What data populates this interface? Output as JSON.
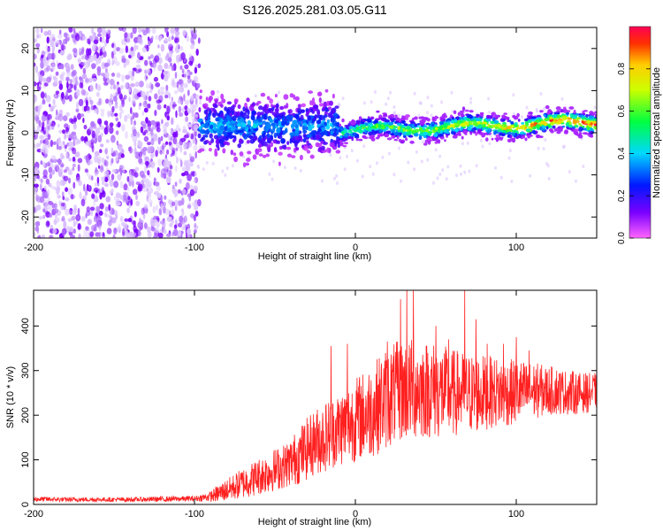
{
  "title": "S126.2025.281.03.05.G11",
  "chart_data": [
    {
      "type": "heatmap",
      "name": "spectrogram",
      "title": "S126.2025.281.03.05.G11",
      "xlabel": "Height of straight line (km)",
      "ylabel": "Frequency (Hz)",
      "xlim": [
        -200,
        150
      ],
      "ylim": [
        -25,
        25
      ],
      "xticks": [
        -200,
        -100,
        0,
        100
      ],
      "yticks": [
        -20,
        -10,
        0,
        10,
        20
      ],
      "xtick_labels": [
        "-200",
        "-100",
        "0",
        "100"
      ],
      "ytick_labels": [
        "-20",
        "-10",
        "0",
        "10",
        "20"
      ],
      "colorbar": {
        "label": "Normalized spectral amplitude",
        "range": [
          0,
          1
        ],
        "ticks": [
          0.0,
          0.2,
          0.4,
          0.6,
          0.8
        ],
        "tick_labels": [
          "0.0",
          "0.2",
          "0.4",
          "0.6",
          "0.8"
        ],
        "colormap": "rainbow (magenta-blue-cyan-green-yellow-red)"
      },
      "regions": [
        {
          "x_range": [
            -200,
            -97
          ],
          "freq_range": [
            -25,
            25
          ],
          "amplitude": 0.02,
          "description": "broadband noise"
        },
        {
          "x_range": [
            -97,
            -10
          ],
          "freq_center": 1.5,
          "freq_halfwidth": 4,
          "amplitude": 0.3
        },
        {
          "x_range": [
            -10,
            150
          ],
          "freq_center_start": 0.5,
          "freq_center_end": 2.5,
          "freq_halfwidth": 2,
          "amplitude_max": 0.95
        }
      ]
    },
    {
      "type": "line",
      "name": "snr",
      "xlabel": "Height of straight line (km)",
      "ylabel": "SNR (10 * v/v)",
      "xlim": [
        -200,
        150
      ],
      "ylim": [
        0,
        480
      ],
      "xticks": [
        -200,
        -100,
        0,
        100
      ],
      "yticks": [
        0,
        100,
        200,
        300,
        400
      ],
      "xtick_labels": [
        "-200",
        "-100",
        "0",
        "100"
      ],
      "ytick_labels": [
        "0",
        "100",
        "200",
        "300",
        "400"
      ],
      "color": "#ff2020",
      "series": [
        {
          "name": "SNR",
          "x": [
            -200,
            -180,
            -160,
            -140,
            -120,
            -100,
            -95,
            -90,
            -85,
            -80,
            -75,
            -70,
            -65,
            -60,
            -55,
            -50,
            -45,
            -40,
            -35,
            -30,
            -25,
            -20,
            -15,
            -10,
            -5,
            0,
            5,
            10,
            15,
            20,
            25,
            30,
            35,
            40,
            45,
            50,
            55,
            60,
            65,
            70,
            75,
            80,
            85,
            90,
            95,
            100,
            105,
            110,
            115,
            120,
            125,
            130,
            135,
            140,
            145,
            150
          ],
          "mean": [
            12,
            11,
            11,
            11,
            12,
            13,
            15,
            18,
            25,
            32,
            40,
            48,
            55,
            63,
            70,
            78,
            85,
            95,
            110,
            125,
            140,
            150,
            160,
            170,
            180,
            190,
            200,
            210,
            225,
            240,
            250,
            255,
            258,
            260,
            258,
            255,
            252,
            250,
            250,
            248,
            248,
            250,
            252,
            250,
            250,
            252,
            252,
            255,
            255,
            255,
            255,
            252,
            250,
            250,
            250,
            255
          ],
          "spread": [
            6,
            5,
            5,
            5,
            6,
            6,
            8,
            12,
            20,
            25,
            30,
            35,
            38,
            42,
            45,
            48,
            50,
            55,
            65,
            70,
            75,
            80,
            80,
            85,
            90,
            95,
            100,
            105,
            110,
            115,
            115,
            115,
            115,
            115,
            110,
            110,
            105,
            100,
            95,
            90,
            90,
            85,
            80,
            80,
            75,
            75,
            70,
            65,
            60,
            55,
            55,
            50,
            50,
            45,
            45,
            40
          ],
          "peaks": [
            [
              -15,
              355
            ],
            [
              -5,
              360
            ],
            [
              20,
              365
            ],
            [
              28,
              460
            ],
            [
              32,
              480
            ],
            [
              36,
              480
            ],
            [
              50,
              400
            ],
            [
              58,
              370
            ],
            [
              68,
              480
            ],
            [
              75,
              415
            ],
            [
              82,
              360
            ],
            [
              92,
              360
            ],
            [
              100,
              375
            ],
            [
              108,
              345
            ]
          ]
        }
      ]
    }
  ]
}
